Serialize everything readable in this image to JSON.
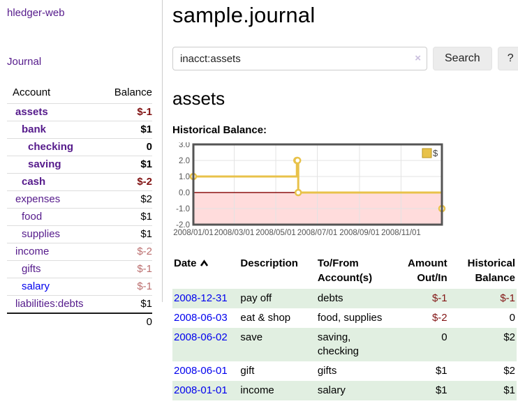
{
  "app": {
    "brand": "hledger-web",
    "nav": {
      "journal": "Journal"
    }
  },
  "sidebar": {
    "header": {
      "account": "Account",
      "balance": "Balance"
    },
    "accounts": [
      {
        "name": "assets",
        "balance": "$-1"
      },
      {
        "name": "bank",
        "balance": "$1"
      },
      {
        "name": "checking",
        "balance": "0"
      },
      {
        "name": "saving",
        "balance": "$1"
      },
      {
        "name": "cash",
        "balance": "$-2"
      },
      {
        "name": "expenses",
        "balance": "$2"
      },
      {
        "name": "food",
        "balance": "$1"
      },
      {
        "name": "supplies",
        "balance": "$1"
      },
      {
        "name": "income",
        "balance": "$-2"
      },
      {
        "name": "gifts",
        "balance": "$-1"
      },
      {
        "name": "salary",
        "balance": "$-1"
      },
      {
        "name": "liabilities:debts",
        "balance": "$1"
      }
    ],
    "total": "0"
  },
  "main": {
    "title": "sample.journal",
    "search": {
      "value": "inacct:assets",
      "clear_icon": "×",
      "search_button": "Search",
      "help_button": "?"
    },
    "account_heading": "assets",
    "section_label": "Historical Balance:"
  },
  "chart_data": {
    "type": "line",
    "step": true,
    "title": "Historical Balance of assets",
    "legend_label": "$",
    "legend_position": "top-right",
    "grid": true,
    "series": [
      {
        "name": "$",
        "x": [
          "2008-01-01",
          "2008-06-01",
          "2008-06-02",
          "2008-06-03",
          "2008-12-31"
        ],
        "values": [
          1,
          2,
          2,
          0,
          -1
        ]
      }
    ],
    "x_range": [
      "2008-01-01",
      "2008-12-31"
    ],
    "ylim": [
      -2,
      3
    ],
    "y_ticks": [
      3.0,
      2.0,
      1.0,
      0.0,
      -1.0,
      -2.0
    ],
    "y_tick_labels": [
      "3.0",
      "2.0",
      "1.0",
      "0.0",
      "-1.0",
      "-2.0"
    ],
    "x_tick_labels": [
      "2008/01/01",
      "2008/03/01",
      "2008/05/01",
      "2008/07/01",
      "2008/09/01",
      "2008/11/01"
    ],
    "negative_region_shaded": true,
    "colors": {
      "line": "#e8c24a",
      "negative_fill": "#ffdcdc",
      "zero_line": "#8b1010",
      "grid": "#e3e3e3",
      "border": "#545454"
    }
  },
  "register": {
    "col_date": "Date",
    "sort_icon": "chevron-up",
    "col_description": "Description",
    "col_accounts": "To/From Account(s)",
    "col_amount": "Amount Out/In",
    "col_balance": "Historical Balance",
    "rows": [
      {
        "date": "2008-12-31",
        "description": "pay off",
        "accounts": "debts",
        "amount": "$-1",
        "balance": "$-1"
      },
      {
        "date": "2008-06-03",
        "description": "eat & shop",
        "accounts": "food, supplies",
        "amount": "$-2",
        "balance": "0"
      },
      {
        "date": "2008-06-02",
        "description": "save",
        "accounts": "saving, checking",
        "amount": "0",
        "balance": "$2"
      },
      {
        "date": "2008-06-01",
        "description": "gift",
        "accounts": "gifts",
        "amount": "$1",
        "balance": "$2"
      },
      {
        "date": "2008-01-01",
        "description": "income",
        "accounts": "salary",
        "amount": "$1",
        "balance": "$1"
      }
    ]
  },
  "colors": {
    "link_visited": "#551A8B",
    "link": "#0000EE",
    "negative_strong": "#801111",
    "negative_soft": "#bb6e6e",
    "row_stripe": "#e1efe1",
    "chart_line": "#e8c24a",
    "chart_negative_fill": "#ffdcdc",
    "chart_zero_line": "#8b1010"
  }
}
